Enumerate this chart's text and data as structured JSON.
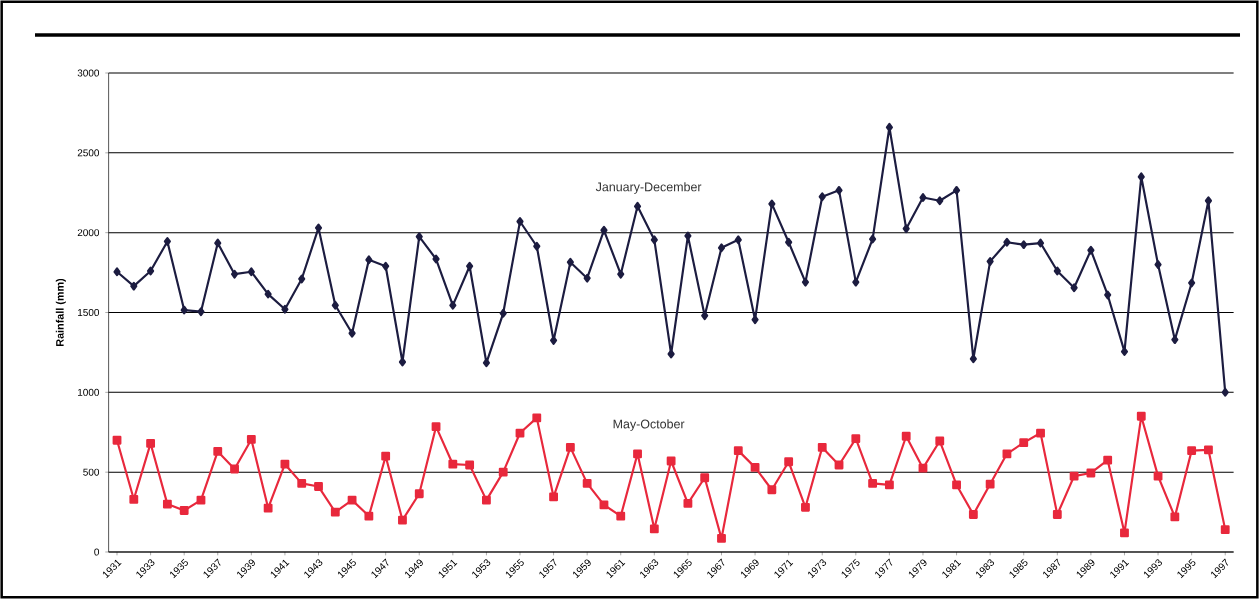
{
  "chart_data": {
    "type": "line",
    "ylabel": "Rainfall (mm)",
    "categories": [
      "1931",
      null,
      "1933",
      null,
      "1935",
      null,
      "1937",
      null,
      "1939",
      null,
      "1941",
      null,
      "1943",
      null,
      "1945",
      null,
      "1947",
      null,
      "1949",
      null,
      "1951",
      null,
      "1953",
      null,
      "1955",
      null,
      "1957",
      null,
      "1959",
      null,
      "1961",
      null,
      "1963",
      null,
      "1965",
      null,
      "1967",
      null,
      "1969",
      null,
      "1971",
      null,
      "1973",
      null,
      "1975",
      null,
      "1977",
      null,
      "1979",
      null,
      "1981",
      null,
      "1983",
      null,
      "1985",
      null,
      "1987",
      null,
      "1989",
      null,
      "1991",
      null,
      "1993",
      null,
      "1995",
      null,
      "1997"
    ],
    "series": [
      {
        "name": "January-December",
        "color": "#1c1c40",
        "marker": "diamond",
        "values": [
          1755,
          1665,
          1760,
          1945,
          1515,
          1505,
          1935,
          1740,
          1755,
          1615,
          1520,
          1710,
          2030,
          1545,
          1370,
          1830,
          1790,
          1190,
          1975,
          1835,
          1545,
          1790,
          1185,
          1495,
          2070,
          1915,
          1325,
          1815,
          1715,
          2015,
          1740,
          2165,
          1955,
          1240,
          1980,
          1480,
          1905,
          1955,
          1455,
          2180,
          1940,
          1690,
          2225,
          2265,
          1690,
          1960,
          2660,
          2025,
          2220,
          2200,
          2265,
          1210,
          1820,
          1940,
          1925,
          1935,
          1760,
          1655,
          1890,
          1610,
          1255,
          2350,
          1800,
          1330,
          1685,
          2200,
          1000
        ]
      },
      {
        "name": "May-October",
        "color": "#e8283c",
        "marker": "square",
        "values": [
          700,
          330,
          680,
          300,
          260,
          325,
          630,
          520,
          705,
          275,
          550,
          430,
          410,
          250,
          325,
          225,
          600,
          200,
          365,
          785,
          550,
          545,
          325,
          500,
          745,
          840,
          345,
          655,
          430,
          295,
          225,
          615,
          145,
          570,
          305,
          465,
          85,
          635,
          530,
          390,
          565,
          280,
          655,
          545,
          710,
          430,
          420,
          725,
          525,
          695,
          420,
          235,
          425,
          615,
          685,
          745,
          235,
          475,
          495,
          575,
          120,
          850,
          475,
          220,
          635,
          640,
          140
        ]
      }
    ],
    "ylim": [
      0,
      3000
    ],
    "yticks": [
      0,
      500,
      1000,
      1500,
      2000,
      2500,
      3000
    ],
    "grid": "y",
    "legend": false,
    "line_style": "solid"
  }
}
